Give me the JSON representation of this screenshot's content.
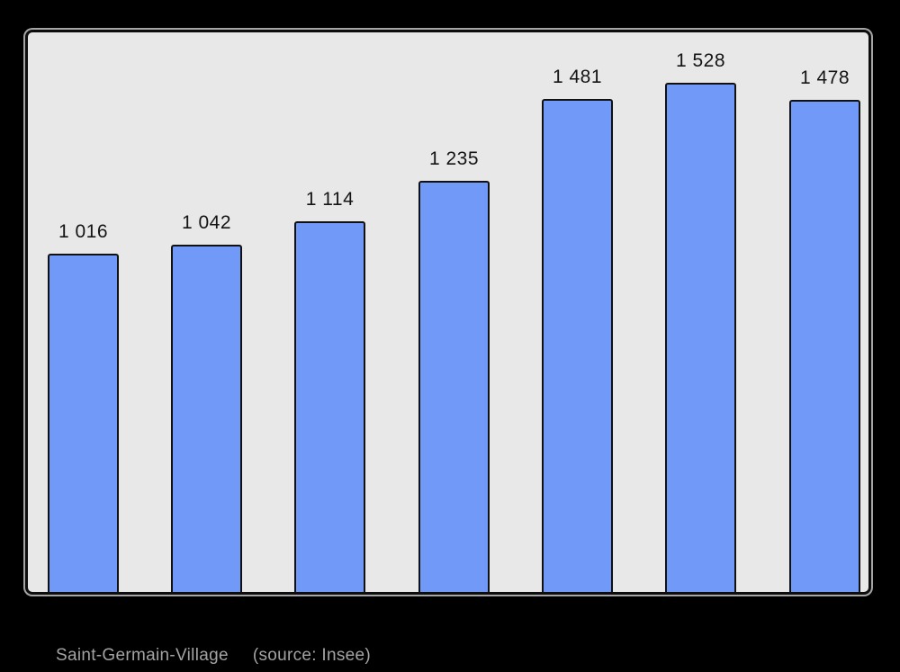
{
  "chart_data": {
    "type": "bar",
    "values": [
      1016,
      1042,
      1114,
      1235,
      1481,
      1528,
      1478
    ],
    "value_labels": [
      "1 016",
      "1 042",
      "1 114",
      "1 235",
      "1 481",
      "1 528",
      "1 478"
    ],
    "title": "",
    "xlabel": "",
    "ylabel": "",
    "ylim": [
      0,
      1680
    ],
    "grid": false,
    "legend": false,
    "colors": {
      "bar_fill": "#7199f8",
      "bar_border": "#111111",
      "plot_background": "#e8e8e8",
      "page_background": "#000000",
      "label_text": "#141414",
      "caption_text": "#a3a3a3"
    }
  },
  "caption": {
    "title": "Saint-Germain-Village",
    "source": "(source: Insee)"
  }
}
